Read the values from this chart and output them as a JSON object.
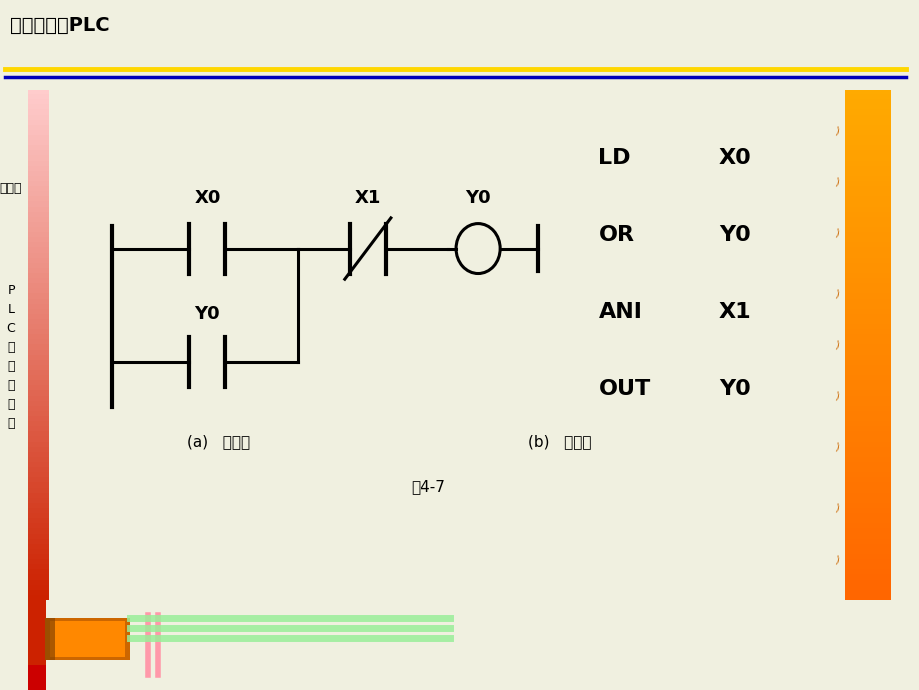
{
  "title": "电气控制与PLC",
  "title_color": "#000000",
  "header_bg": "#e8e8d8",
  "yellow_line_color": "#FFD700",
  "blue_line_color": "#0000BB",
  "left_sidebar_text_1": "模块四",
  "left_sidebar_text_2": "P\nL\nC\n的\n指\n令\n系\n统",
  "right_sidebar_color": "#FF8C00",
  "caption_a": "(a)   梯形图",
  "caption_b": "(b)   语句表",
  "figure_caption": "图4-7",
  "instruction_labels": [
    "LD",
    "OR",
    "ANI",
    "OUT"
  ],
  "instruction_operands": [
    "X0",
    "Y0",
    "X1",
    "Y0"
  ],
  "bg_color": "#f0f0e0",
  "main_bg": "#ffffff",
  "line_width": 2.2,
  "lw_thick": 3.0
}
